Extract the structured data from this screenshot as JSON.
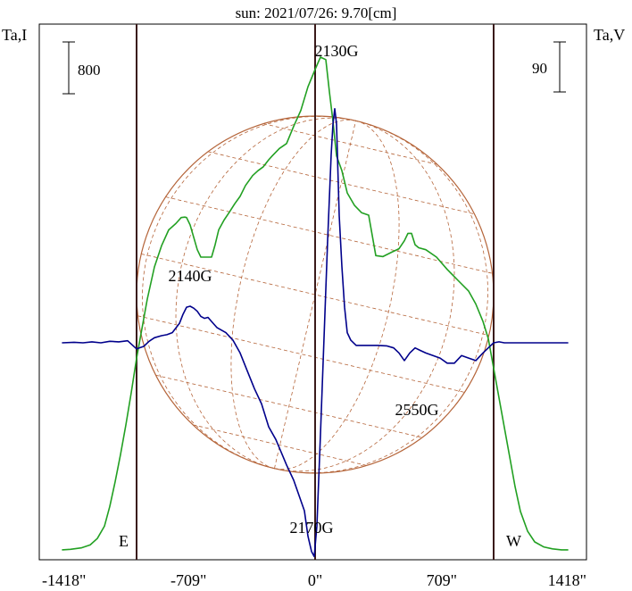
{
  "chart_data": {
    "type": "line",
    "title": "sun: 2021/07/26: 9.70[cm]",
    "ylabel_left": "Ta,I",
    "ylabel_right": "Ta,V",
    "scale_left_label": "800",
    "scale_right_label": "90",
    "xlim": [
      -1418,
      1418
    ],
    "x_ticks": [
      -1418,
      -709,
      0,
      709,
      1418
    ],
    "x_tick_labels": [
      "-1418\"",
      "-709\"",
      "0\"",
      "709\"",
      "1418\""
    ],
    "limb_markers": [
      {
        "x": -1000,
        "label": "E"
      },
      {
        "x": 0,
        "label": ""
      },
      {
        "x": 1000,
        "label": "W"
      }
    ],
    "disk_radius": 1000,
    "grid_colors": {
      "disk": "#b5653a",
      "intensity": "#22a022",
      "polarization": "#00008b"
    },
    "annotations": [
      {
        "text": "2130G",
        "x": 120,
        "y_norm": 0.94
      },
      {
        "text": "2140G",
        "x": -700,
        "y_norm": 0.52
      },
      {
        "text": "2550G",
        "x": 570,
        "y_norm": 0.27
      },
      {
        "text": "2170G",
        "x": -20,
        "y_norm": 0.05
      }
    ],
    "series": [
      {
        "style": "intensity",
        "x": [
          -1418,
          -1370,
          -1310,
          -1260,
          -1220,
          -1180,
          -1150,
          -1120,
          -1090,
          -1060,
          -1030,
          -1000,
          -970,
          -940,
          -900,
          -860,
          -820,
          -780,
          -750,
          -730,
          -720,
          -700,
          -680,
          -660,
          -640,
          -620,
          -600,
          -580,
          -560,
          -540,
          -510,
          -480,
          -450,
          -420,
          -390,
          -350,
          -320,
          -290,
          -260,
          -240,
          -200,
          -160,
          -120,
          -80,
          -40,
          0,
          30,
          60,
          80,
          100,
          120,
          150,
          180,
          220,
          260,
          300,
          340,
          380,
          430,
          470,
          500,
          520,
          540,
          560,
          580,
          620,
          680,
          740,
          800,
          860,
          900,
          940,
          970,
          1000,
          1030,
          1060,
          1090,
          1120,
          1150,
          1190,
          1230,
          1280,
          1330,
          1380,
          1418
        ],
        "y": [
          2,
          3,
          6,
          12,
          25,
          50,
          90,
          140,
          195,
          255,
          320,
          390,
          450,
          510,
          575,
          618,
          650,
          663,
          675,
          676,
          675,
          660,
          635,
          610,
          595,
          595,
          595,
          595,
          620,
          650,
          670,
          686,
          703,
          718,
          740,
          760,
          770,
          778,
          792,
          800,
          815,
          825,
          860,
          892,
          940,
          975,
          1000,
          995,
          930,
          870,
          800,
          770,
          725,
          700,
          685,
          680,
          598,
          596,
          605,
          612,
          628,
          643,
          643,
          620,
          614,
          610,
          595,
          570,
          548,
          526,
          500,
          465,
          430,
          370,
          310,
          250,
          190,
          130,
          80,
          40,
          18,
          8,
          4,
          2,
          2
        ]
      },
      {
        "style": "polarization",
        "x": [
          -1418,
          -1350,
          -1300,
          -1250,
          -1200,
          -1150,
          -1100,
          -1050,
          -1000,
          -960,
          -930,
          -900,
          -860,
          -830,
          -800,
          -760,
          -740,
          -720,
          -700,
          -680,
          -660,
          -640,
          -620,
          -600,
          -580,
          -550,
          -500,
          -460,
          -420,
          -380,
          -340,
          -300,
          -260,
          -220,
          -190,
          -160,
          -120,
          -90,
          -60,
          -40,
          -20,
          -5,
          10,
          30,
          50,
          70,
          90,
          100,
          110,
          120,
          135,
          150,
          165,
          180,
          200,
          230,
          260,
          300,
          350,
          400,
          440,
          470,
          500,
          530,
          560,
          590,
          620,
          660,
          700,
          740,
          780,
          820,
          860,
          900,
          940,
          970,
          1000,
          1030,
          1060,
          1100,
          1150,
          1200,
          1250,
          1300,
          1350,
          1418
        ],
        "y": [
          0,
          1,
          0,
          2,
          0,
          3,
          2,
          4,
          -12,
          -7,
          3,
          10,
          14,
          16,
          20,
          38,
          56,
          70,
          72,
          68,
          62,
          52,
          48,
          50,
          42,
          30,
          20,
          5,
          -20,
          -55,
          -90,
          -120,
          -165,
          -190,
          -215,
          -240,
          -270,
          -300,
          -330,
          -380,
          -410,
          -420,
          -360,
          -180,
          10,
          200,
          370,
          430,
          460,
          430,
          250,
          150,
          70,
          20,
          5,
          -5,
          -5,
          -5,
          -5,
          -6,
          -10,
          -20,
          -35,
          -20,
          -10,
          -15,
          -20,
          -25,
          -30,
          -40,
          -40,
          -25,
          -30,
          -35,
          -20,
          -10,
          0,
          2,
          0,
          0,
          0,
          0,
          0,
          0,
          0,
          0
        ]
      }
    ]
  }
}
